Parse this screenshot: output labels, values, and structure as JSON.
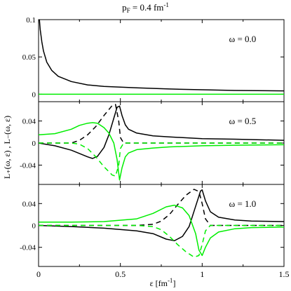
{
  "chart_data": {
    "type": "line",
    "title": {
      "base": "p",
      "sub": "F",
      "text": " = 0.4 fm",
      "sup": "-1"
    },
    "ylabel": "L₊(ω, ε) ,  L₋(ω, ε)",
    "xlabel": {
      "text": "ε  [fm",
      "sup": "-1",
      "close": "]"
    },
    "xlim": [
      0,
      1.5
    ],
    "xticks": [
      "0",
      "0.5",
      "1",
      "1.5"
    ],
    "colors": {
      "L_plus": "#000000",
      "L_minus": "#00ee00"
    },
    "panels": [
      {
        "annotation": "ω = 0.0",
        "ylim": [
          -0.01,
          0.1
        ],
        "yticks": [
          "0",
          "0.05",
          "0.1"
        ],
        "series": [
          {
            "style": "solid-black",
            "x": [
              0.005,
              0.01,
              0.02,
              0.03,
              0.05,
              0.08,
              0.12,
              0.2,
              0.3,
              0.4,
              0.5,
              0.6,
              0.8,
              1.0,
              1.2,
              1.5
            ],
            "y": [
              0.1,
              0.087,
              0.07,
              0.058,
              0.043,
              0.032,
              0.024,
              0.017,
              0.0125,
              0.0105,
              0.0095,
              0.0085,
              0.007,
              0.006,
              0.005,
              0.0045
            ]
          },
          {
            "style": "solid-green",
            "x": [
              0,
              1.5
            ],
            "y": [
              0,
              0
            ]
          }
        ]
      },
      {
        "annotation": "ω = 0.5",
        "ylim": [
          -0.075,
          0.075
        ],
        "yticks": [
          "0.04",
          "0",
          "-0.04"
        ],
        "series": [
          {
            "style": "solid-black",
            "x": [
              0,
              0.1,
              0.2,
              0.3,
              0.33,
              0.36,
              0.4,
              0.43,
              0.46,
              0.48,
              0.495,
              0.51,
              0.53,
              0.55,
              0.6,
              0.7,
              0.8,
              1.0,
              1.2,
              1.5
            ],
            "y": [
              0,
              -0.005,
              -0.013,
              -0.025,
              -0.028,
              -0.024,
              -0.008,
              0.015,
              0.045,
              0.065,
              0.067,
              0.05,
              0.033,
              0.025,
              0.018,
              0.013,
              0.011,
              0.008,
              0.007,
              0.005
            ]
          },
          {
            "style": "dashed-black",
            "x": [
              0,
              0.1,
              0.2,
              0.25,
              0.3,
              0.35,
              0.4,
              0.45,
              0.47,
              0.49,
              0.5,
              0.52,
              0.55,
              0.6,
              1.0,
              1.5
            ],
            "y": [
              0,
              0,
              0,
              0.005,
              0.015,
              0.03,
              0.05,
              0.068,
              0.07,
              0.04,
              0.01,
              0,
              0,
              0,
              0,
              0
            ]
          },
          {
            "style": "solid-green",
            "x": [
              0,
              0.1,
              0.2,
              0.25,
              0.3,
              0.33,
              0.36,
              0.4,
              0.43,
              0.46,
              0.48,
              0.495,
              0.51,
              0.53,
              0.55,
              0.6,
              0.7,
              0.8,
              1.0,
              1.2,
              1.5
            ],
            "y": [
              0.015,
              0.017,
              0.025,
              0.032,
              0.036,
              0.037,
              0.036,
              0.028,
              0.018,
              0.0,
              -0.03,
              -0.067,
              -0.045,
              -0.025,
              -0.018,
              -0.012,
              -0.009,
              -0.007,
              -0.005,
              -0.004,
              -0.003
            ]
          },
          {
            "style": "dashed-green",
            "x": [
              0,
              0.1,
              0.2,
              0.25,
              0.3,
              0.35,
              0.4,
              0.45,
              0.47,
              0.49,
              0.5,
              0.52,
              0.55,
              0.6,
              1.0,
              1.5
            ],
            "y": [
              0,
              0,
              0,
              -0.002,
              -0.01,
              -0.025,
              -0.043,
              -0.058,
              -0.06,
              -0.04,
              -0.01,
              0,
              0,
              0,
              0,
              0
            ]
          }
        ]
      },
      {
        "annotation": "ω = 1.0",
        "ylim": [
          -0.075,
          0.075
        ],
        "yticks": [
          "0.04",
          "0",
          "-0.04"
        ],
        "series": [
          {
            "style": "solid-black",
            "x": [
              0,
              0.2,
              0.4,
              0.6,
              0.7,
              0.78,
              0.83,
              0.88,
              0.92,
              0.96,
              0.99,
              1.0,
              1.02,
              1.05,
              1.1,
              1.2,
              1.3,
              1.5
            ],
            "y": [
              0,
              -0.002,
              -0.005,
              -0.01,
              -0.015,
              -0.025,
              -0.028,
              -0.02,
              -0.002,
              0.035,
              0.063,
              0.065,
              0.045,
              0.025,
              0.015,
              0.01,
              0.008,
              0.007
            ]
          },
          {
            "style": "dashed-black",
            "x": [
              0,
              0.6,
              0.7,
              0.75,
              0.8,
              0.85,
              0.9,
              0.95,
              0.98,
              1.0,
              1.02,
              1.05,
              1.1,
              1.5
            ],
            "y": [
              0,
              0,
              0.002,
              0.008,
              0.02,
              0.038,
              0.055,
              0.066,
              0.062,
              0.04,
              0.012,
              0,
              0,
              0
            ]
          },
          {
            "style": "solid-green",
            "x": [
              0,
              0.2,
              0.4,
              0.6,
              0.7,
              0.78,
              0.83,
              0.88,
              0.92,
              0.96,
              0.98,
              1.0,
              1.02,
              1.05,
              1.1,
              1.2,
              1.3,
              1.5
            ],
            "y": [
              0.006,
              0.006,
              0.007,
              0.012,
              0.022,
              0.034,
              0.037,
              0.032,
              0.018,
              -0.015,
              -0.045,
              -0.055,
              -0.04,
              -0.023,
              -0.012,
              -0.006,
              -0.004,
              -0.003
            ]
          },
          {
            "style": "dashed-green",
            "x": [
              0,
              0.6,
              0.7,
              0.75,
              0.8,
              0.85,
              0.9,
              0.95,
              0.98,
              1.0,
              1.02,
              1.05,
              1.1,
              1.5
            ],
            "y": [
              0,
              0,
              -0.002,
              -0.008,
              -0.02,
              -0.035,
              -0.048,
              -0.058,
              -0.055,
              -0.035,
              -0.01,
              0,
              0,
              0
            ]
          }
        ]
      }
    ]
  }
}
